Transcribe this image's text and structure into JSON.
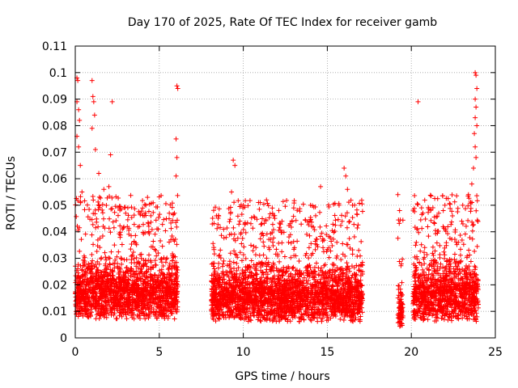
{
  "chart_data": {
    "type": "scatter",
    "title": "Day 170 of 2025, Rate Of TEC Index for receiver gamb",
    "xlabel": "GPS time / hours",
    "ylabel": "ROTI / TECUs",
    "xlim": [
      0,
      25
    ],
    "ylim": [
      0,
      0.11
    ],
    "xticks": [
      0,
      5,
      10,
      15,
      20,
      25
    ],
    "xtick_labels": [
      "0",
      "5",
      "10",
      "15",
      "20",
      "25"
    ],
    "yticks": [
      0,
      0.01,
      0.02,
      0.03,
      0.04,
      0.05,
      0.06,
      0.07,
      0.08,
      0.09,
      0.1,
      0.11
    ],
    "ytick_labels": [
      "0",
      "0.01",
      "0.02",
      "0.03",
      "0.04",
      "0.05",
      "0.06",
      "0.07",
      "0.08",
      "0.09",
      "0.1",
      "0.11"
    ],
    "grid": true,
    "marker": "+",
    "marker_color": "#ff0000",
    "data_segments": [
      {
        "x_start": 0.0,
        "x_end": 6.1,
        "y_base": 0.012,
        "y_spread": 0.02
      },
      {
        "x_start": 8.1,
        "x_end": 17.1,
        "y_base": 0.011,
        "y_spread": 0.019
      },
      {
        "x_start": 19.2,
        "x_end": 19.5,
        "y_base": 0.009,
        "y_spread": 0.014
      },
      {
        "x_start": 20.1,
        "x_end": 24.0,
        "y_base": 0.011,
        "y_spread": 0.021
      }
    ],
    "notable_points": [
      {
        "x": 0.1,
        "y": 0.098
      },
      {
        "x": 0.15,
        "y": 0.097
      },
      {
        "x": 0.1,
        "y": 0.089
      },
      {
        "x": 0.2,
        "y": 0.086
      },
      {
        "x": 0.25,
        "y": 0.082
      },
      {
        "x": 0.1,
        "y": 0.076
      },
      {
        "x": 0.2,
        "y": 0.072
      },
      {
        "x": 0.3,
        "y": 0.065
      },
      {
        "x": 1.0,
        "y": 0.097
      },
      {
        "x": 1.05,
        "y": 0.091
      },
      {
        "x": 1.1,
        "y": 0.089
      },
      {
        "x": 1.15,
        "y": 0.084
      },
      {
        "x": 1.0,
        "y": 0.079
      },
      {
        "x": 1.2,
        "y": 0.071
      },
      {
        "x": 2.2,
        "y": 0.089
      },
      {
        "x": 2.1,
        "y": 0.069
      },
      {
        "x": 1.4,
        "y": 0.062
      },
      {
        "x": 6.05,
        "y": 0.095
      },
      {
        "x": 6.1,
        "y": 0.094
      },
      {
        "x": 6.0,
        "y": 0.075
      },
      {
        "x": 6.05,
        "y": 0.068
      },
      {
        "x": 6.0,
        "y": 0.061
      },
      {
        "x": 5.9,
        "y": 0.047
      },
      {
        "x": 9.4,
        "y": 0.067
      },
      {
        "x": 9.5,
        "y": 0.065
      },
      {
        "x": 14.6,
        "y": 0.057
      },
      {
        "x": 16.0,
        "y": 0.064
      },
      {
        "x": 16.1,
        "y": 0.061
      },
      {
        "x": 16.2,
        "y": 0.056
      },
      {
        "x": 19.2,
        "y": 0.054
      },
      {
        "x": 19.3,
        "y": 0.048
      },
      {
        "x": 20.4,
        "y": 0.089
      },
      {
        "x": 23.8,
        "y": 0.1
      },
      {
        "x": 23.85,
        "y": 0.099
      },
      {
        "x": 23.9,
        "y": 0.094
      },
      {
        "x": 23.8,
        "y": 0.09
      },
      {
        "x": 23.85,
        "y": 0.087
      },
      {
        "x": 23.8,
        "y": 0.083
      },
      {
        "x": 23.9,
        "y": 0.08
      },
      {
        "x": 23.75,
        "y": 0.077
      },
      {
        "x": 23.8,
        "y": 0.072
      },
      {
        "x": 23.85,
        "y": 0.068
      },
      {
        "x": 23.7,
        "y": 0.064
      },
      {
        "x": 23.6,
        "y": 0.058
      },
      {
        "x": 23.4,
        "y": 0.054
      },
      {
        "x": 22.0,
        "y": 0.05
      },
      {
        "x": 21.9,
        "y": 0.048
      },
      {
        "x": 4.3,
        "y": 0.053
      },
      {
        "x": 4.2,
        "y": 0.05
      },
      {
        "x": 3.0,
        "y": 0.047
      },
      {
        "x": 13.0,
        "y": 0.049
      },
      {
        "x": 14.0,
        "y": 0.05
      },
      {
        "x": 15.7,
        "y": 0.05
      },
      {
        "x": 16.5,
        "y": 0.05
      },
      {
        "x": 9.3,
        "y": 0.055
      },
      {
        "x": 10.0,
        "y": 0.05
      },
      {
        "x": 8.4,
        "y": 0.046
      },
      {
        "x": 0.4,
        "y": 0.055
      },
      {
        "x": 1.7,
        "y": 0.056
      },
      {
        "x": 2.0,
        "y": 0.057
      }
    ]
  }
}
